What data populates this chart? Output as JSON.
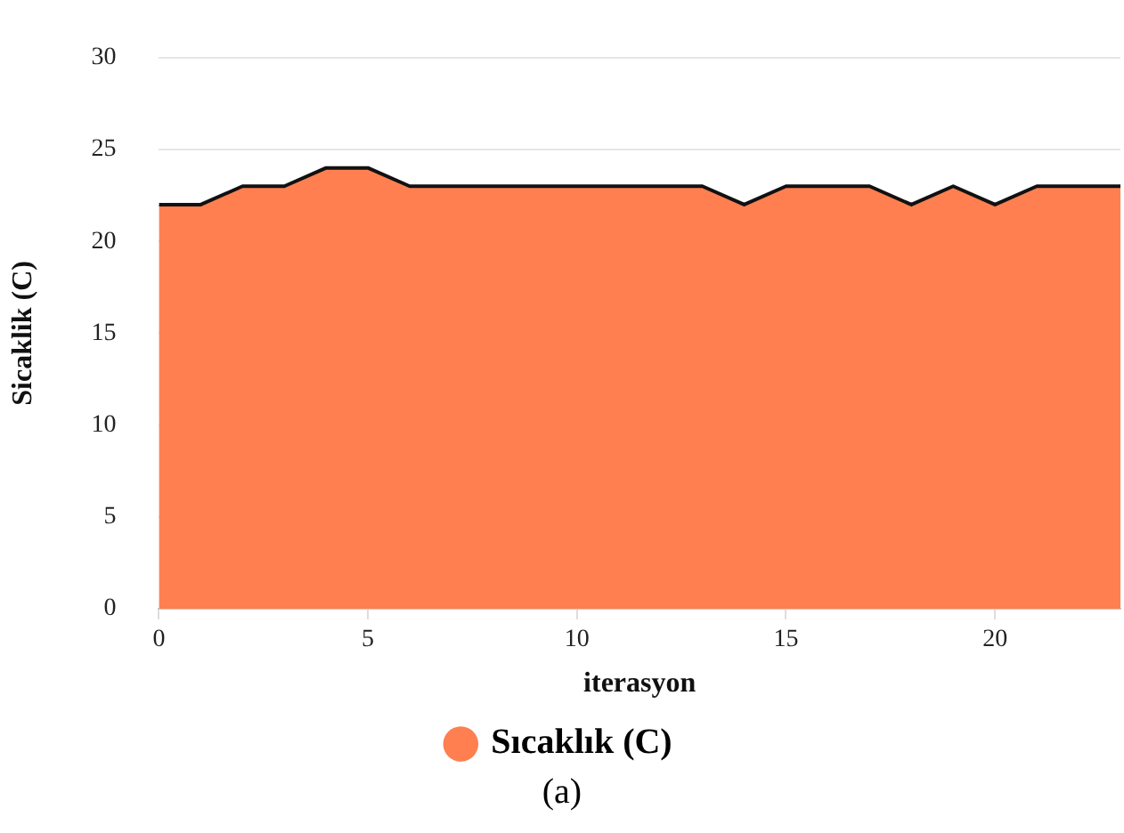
{
  "chart_data": {
    "type": "area",
    "xlabel": "iterasyon",
    "ylabel": "Sicaklik (C)",
    "x": [
      0,
      1,
      2,
      3,
      4,
      5,
      6,
      7,
      8,
      9,
      10,
      11,
      12,
      13,
      14,
      15,
      16,
      17,
      18,
      19,
      20,
      21,
      22,
      23
    ],
    "series": [
      {
        "name": "Sıcaklık (C)",
        "color": "#ff7f50",
        "values": [
          22,
          22,
          23,
          23,
          24,
          24,
          23,
          23,
          23,
          23,
          23,
          23,
          23,
          23,
          22,
          23,
          23,
          23,
          22,
          23,
          22,
          23,
          23,
          23
        ]
      }
    ],
    "xlim": [
      0,
      23
    ],
    "xticks": [
      0,
      5,
      10,
      15,
      20
    ],
    "ylim": [
      0,
      30
    ],
    "yticks": [
      0,
      5,
      10,
      15,
      20,
      25,
      30
    ],
    "grid": "y",
    "legend": "bottom",
    "marker": "none",
    "annotations": [
      "(a)"
    ]
  }
}
